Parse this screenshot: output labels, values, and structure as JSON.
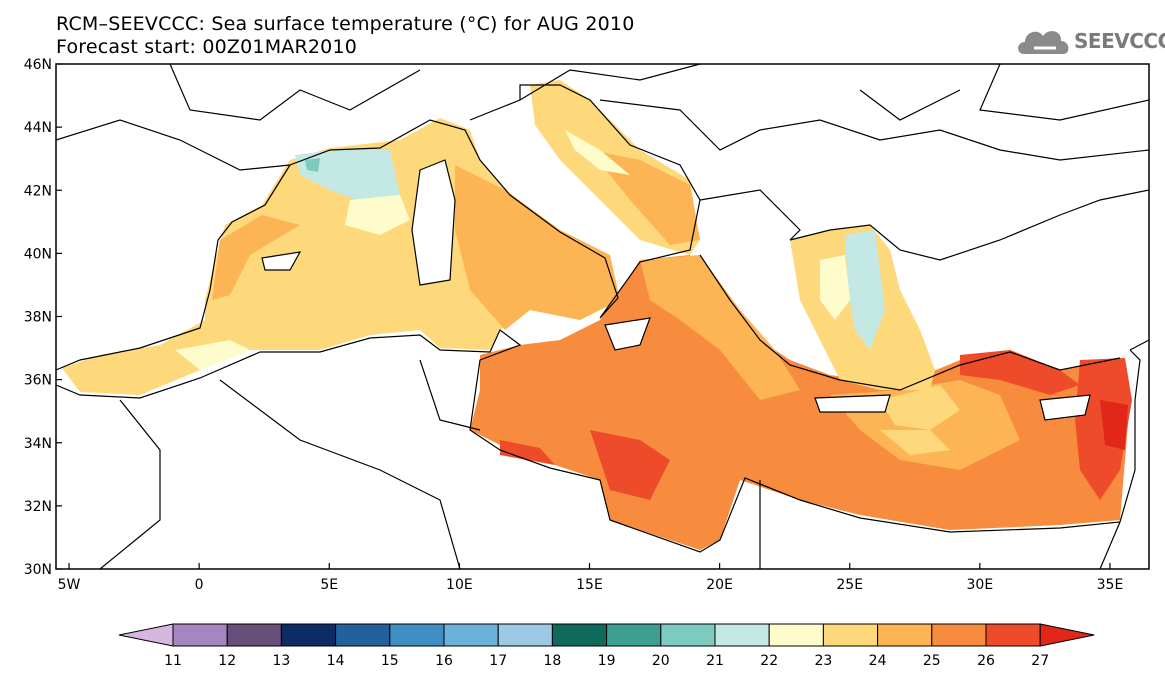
{
  "header": {
    "title": "RCM–SEEVCCC: Sea surface temperature (°C) for AUG 2010",
    "subtitle": "Forecast start: 00Z01MAR2010"
  },
  "logo": {
    "text": "SEEVCCC",
    "icon": "cloud-logo-icon"
  },
  "map": {
    "region": "Mediterranean Sea",
    "lon_range": [
      -5.5,
      36.5
    ],
    "lat_range": [
      30,
      46
    ],
    "x_ticks": [
      {
        "lon": -5,
        "label": "5W"
      },
      {
        "lon": 0,
        "label": "0"
      },
      {
        "lon": 5,
        "label": "5E"
      },
      {
        "lon": 10,
        "label": "10E"
      },
      {
        "lon": 15,
        "label": "15E"
      },
      {
        "lon": 20,
        "label": "20E"
      },
      {
        "lon": 25,
        "label": "25E"
      },
      {
        "lon": 30,
        "label": "30E"
      },
      {
        "lon": 35,
        "label": "35E"
      }
    ],
    "y_ticks": [
      {
        "lat": 30,
        "label": "30N"
      },
      {
        "lat": 32,
        "label": "32N"
      },
      {
        "lat": 34,
        "label": "34N"
      },
      {
        "lat": 36,
        "label": "36N"
      },
      {
        "lat": 38,
        "label": "38N"
      },
      {
        "lat": 40,
        "label": "40N"
      },
      {
        "lat": 42,
        "label": "42N"
      },
      {
        "lat": 44,
        "label": "44N"
      },
      {
        "lat": 46,
        "label": "46N"
      }
    ]
  },
  "colorbar": {
    "labels": [
      "11",
      "12",
      "13",
      "14",
      "15",
      "16",
      "17",
      "18",
      "19",
      "20",
      "21",
      "22",
      "23",
      "24",
      "25",
      "26",
      "27"
    ],
    "colors": [
      "#d7b7e0",
      "#a686c0",
      "#684f7a",
      "#0c2c63",
      "#21619c",
      "#3f8ec4",
      "#6bb2da",
      "#9cc9e3",
      "#0e6a5a",
      "#3d9e92",
      "#7ccac0",
      "#c4e8e4",
      "#fffccb",
      "#fed97c",
      "#fcb455",
      "#f78c3f",
      "#ee4b2b",
      "#e02718"
    ]
  },
  "legend_values": {
    "dominant_west": 24,
    "dominant_east": 26,
    "cool_spots": [
      21,
      22
    ]
  }
}
